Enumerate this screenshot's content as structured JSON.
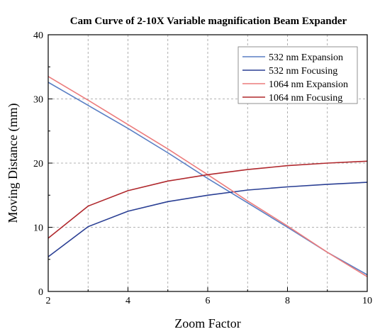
{
  "chart_data": {
    "type": "line",
    "title": "Cam Curve of 2-10X Variable magnification Beam Expander",
    "xlabel": "Zoom Factor",
    "ylabel": "Moving Distance (mm)",
    "xlim": [
      2,
      10
    ],
    "ylim": [
      0,
      40
    ],
    "xticks": [
      2,
      4,
      6,
      8,
      10
    ],
    "yticks": [
      0,
      10,
      20,
      30,
      40
    ],
    "grid": true,
    "legend_position": "top-right",
    "series": [
      {
        "name": "532 nm Expansion",
        "color": "#5a7fc4",
        "x": [
          2,
          3,
          4,
          5,
          6,
          7,
          8,
          9,
          10
        ],
        "y": [
          32.6,
          29.0,
          25.4,
          21.6,
          17.6,
          13.8,
          10.0,
          6.1,
          2.6
        ]
      },
      {
        "name": "532 nm Focusing",
        "color": "#2a3f94",
        "x": [
          2,
          3,
          4,
          5,
          6,
          7,
          8,
          9,
          10
        ],
        "y": [
          5.4,
          10.1,
          12.5,
          14.0,
          15.0,
          15.8,
          16.3,
          16.7,
          17.0
        ]
      },
      {
        "name": "1064 nm Expansion",
        "color": "#ec7c7c",
        "x": [
          2,
          3,
          4,
          5,
          6,
          7,
          8,
          9,
          10
        ],
        "y": [
          33.5,
          29.8,
          26.0,
          22.2,
          18.2,
          14.1,
          10.2,
          6.1,
          2.3
        ]
      },
      {
        "name": "1064 nm Focusing",
        "color": "#b0282d",
        "x": [
          2,
          3,
          4,
          5,
          6,
          7,
          8,
          9,
          10
        ],
        "y": [
          8.3,
          13.3,
          15.7,
          17.2,
          18.2,
          19.0,
          19.6,
          20.0,
          20.3
        ]
      }
    ]
  }
}
